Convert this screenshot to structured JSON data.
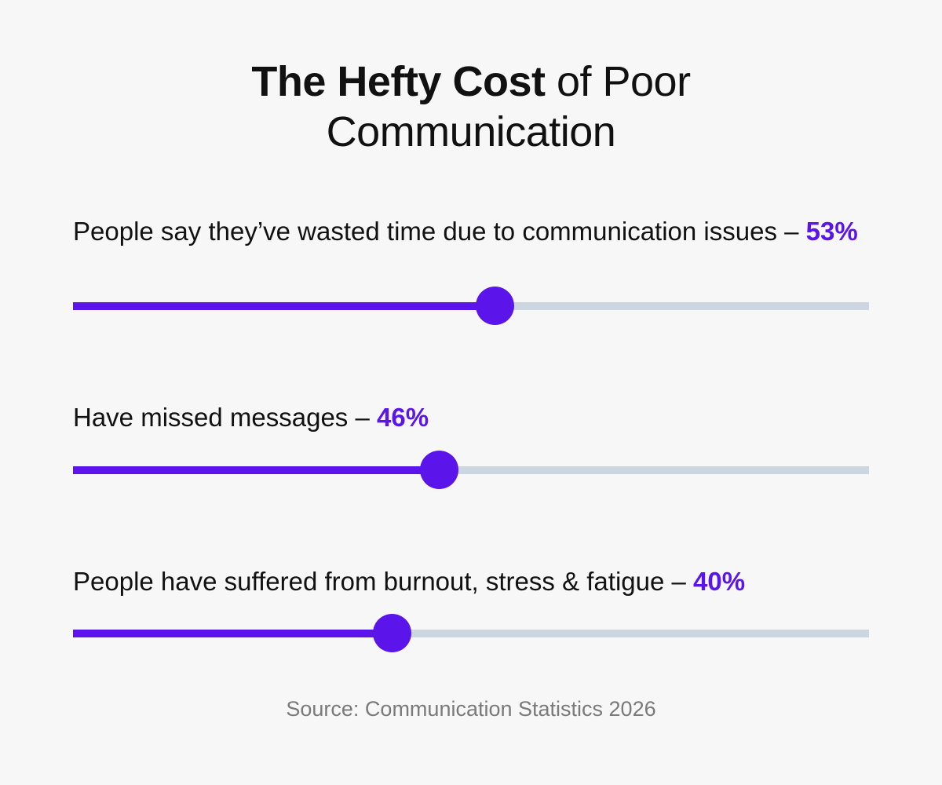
{
  "title": {
    "bold": "The Hefty Cost",
    "rest_line1": " of Poor",
    "line2": "Communication"
  },
  "colors": {
    "accent": "#5b14ea",
    "track": "#ccd6e0",
    "background": "#f7f7f7"
  },
  "chart_data": {
    "type": "bar",
    "categories": [
      "People say they’ve wasted time due to communication issues",
      "Have missed messages",
      "People have suffered from burnout, stress & fatigue"
    ],
    "values": [
      53,
      46,
      40
    ],
    "ylim": [
      0,
      100
    ],
    "unit": "%"
  },
  "stats": [
    {
      "label": "People say they’ve wasted time due to communication issues – ",
      "value_label": "53%"
    },
    {
      "label": "Have missed messages – ",
      "value_label": "46%"
    },
    {
      "label": "People have suffered from burnout, stress & fatigue – ",
      "value_label": "40%"
    }
  ],
  "source": "Source:  Communication Statistics 2026"
}
